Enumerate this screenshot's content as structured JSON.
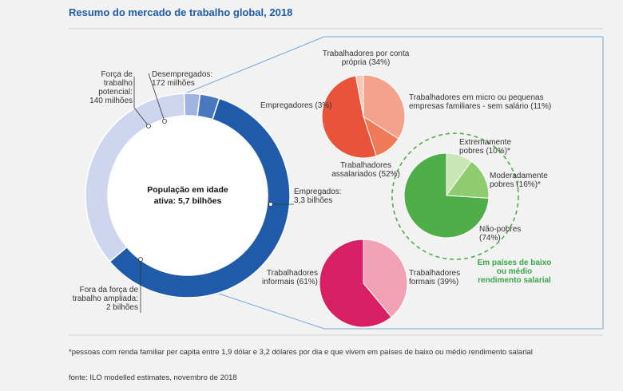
{
  "title": "Resumo do mercado de trabalho global, 2018",
  "colors": {
    "title": "#1f5ba8",
    "employed": "#1f5ba8",
    "unemployed": "#4a78bf",
    "potential": "#9fb4e0",
    "outside": "#cdd6ee",
    "green_text": "#3aa64a"
  },
  "chart_data": [
    {
      "type": "pie",
      "name": "donut",
      "center_label": [
        "População em idade",
        "ativa: 5,7 bilhões"
      ],
      "slices": [
        {
          "key": "employed",
          "label": [
            "Empregados:",
            "3,3 bilhões"
          ],
          "value": 3.3
        },
        {
          "key": "outside",
          "label": [
            "Fora da força de",
            "trabalho ampliada:",
            "2 bilhões"
          ],
          "value": 2.0
        },
        {
          "key": "potential",
          "label": [
            "Força de",
            "trabalho",
            "potencial:",
            "140 milhões"
          ],
          "value": 0.14
        },
        {
          "key": "unemployed",
          "label": [
            "Desempregados:",
            "172 milhões"
          ],
          "value": 0.172
        }
      ]
    },
    {
      "type": "pie",
      "name": "employment-status",
      "slices": [
        {
          "label": [
            "Trabalhadores por conta",
            "própria (34%)"
          ],
          "value": 34,
          "color": "#f4a28c"
        },
        {
          "label": [
            "Trabalhadores em micro ou pequenas",
            "empresas familiares - sem salário (11%)"
          ],
          "value": 11,
          "color": "#ef7a58"
        },
        {
          "label": [
            "Trabalhadores",
            "assalariados (52%)"
          ],
          "value": 52,
          "color": "#e9533a"
        },
        {
          "label": [
            "Empregadores (3%)"
          ],
          "value": 3,
          "color": "#f8c6b6"
        }
      ]
    },
    {
      "type": "pie",
      "name": "poverty",
      "slices": [
        {
          "label": [
            "Extremamente",
            "pobres (10%)*"
          ],
          "value": 10,
          "color": "#c9e6b6"
        },
        {
          "label": [
            "Moderadamente",
            "pobres (16%)*"
          ],
          "value": 16,
          "color": "#8fcb6f"
        },
        {
          "label": [
            "Não-pobres",
            "(74%)"
          ],
          "value": 74,
          "color": "#4fae4a"
        }
      ],
      "caption": [
        "Em países de baixo",
        "ou médio",
        "rendimento salarial"
      ]
    },
    {
      "type": "pie",
      "name": "formality",
      "slices": [
        {
          "label": [
            "Trabalhadores",
            "formais (39%)"
          ],
          "value": 39,
          "color": "#f0a1b3"
        },
        {
          "label": [
            "Trabalhadores",
            "informais (61%)"
          ],
          "value": 61,
          "color": "#d81f63"
        }
      ]
    }
  ],
  "footnote": "*pessoas com renda familiar per capita entre 1,9 dólar e 3,2 dólares por dia e que vivem em países de baixo ou médio rendimento salarial",
  "source": "fonte: ILO modelled estimates, novembro de 2018"
}
